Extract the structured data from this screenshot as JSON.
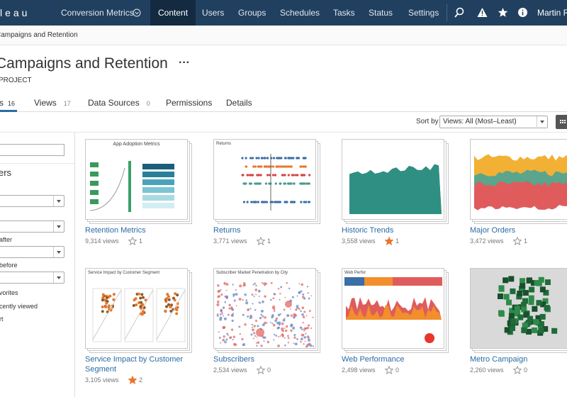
{
  "nav": {
    "logo": "leau",
    "site": "Conversion Metrics",
    "items": [
      "Content",
      "Users",
      "Groups",
      "Schedules",
      "Tasks",
      "Status",
      "Settings"
    ],
    "user": "Martin R"
  },
  "breadcrumb": "Campaigns and Retention",
  "project": {
    "title": "Campaigns and Retention",
    "more": "···",
    "label": "PROJECT"
  },
  "tabs": [
    {
      "label": "s",
      "count": "16"
    },
    {
      "label": "Views",
      "count": "17"
    },
    {
      "label": "Data Sources",
      "count": "0"
    },
    {
      "label": "Permissions"
    },
    {
      "label": "Details"
    }
  ],
  "sort": {
    "label": "Sort by",
    "value": "Views: All (Most–Least)"
  },
  "filters": {
    "heading": "ers",
    "labels": [
      "after",
      "before"
    ],
    "checks": [
      "vorites",
      "cently viewed",
      "rt"
    ]
  },
  "cards": [
    {
      "name": "Retention Metrics",
      "views": "9,314 views",
      "favorites": "1",
      "thumb_title": "App Adoption Metrics"
    },
    {
      "name": "Returns",
      "views": "3,771 views",
      "favorites": "1",
      "thumb_title": "Returns"
    },
    {
      "name": "Historic Trends",
      "views": "3,558 views",
      "favorites": "1"
    },
    {
      "name": "Major Orders",
      "views": "3,472 views",
      "favorites": "1"
    },
    {
      "name": "Service Impact by Customer Segment",
      "views": "3,105 views",
      "favorites": "2",
      "thumb_title": "Service Impact by Customer Segment"
    },
    {
      "name": "Subscribers",
      "views": "2,534 views",
      "favorites": "0",
      "thumb_title": "Subscriber Market Penetration by City"
    },
    {
      "name": "Web Performance",
      "views": "2,498 views",
      "favorites": "0",
      "thumb_title": "Web Perfor"
    },
    {
      "name": "Metro Campaign",
      "views": "2,260 views",
      "favorites": "0"
    }
  ]
}
